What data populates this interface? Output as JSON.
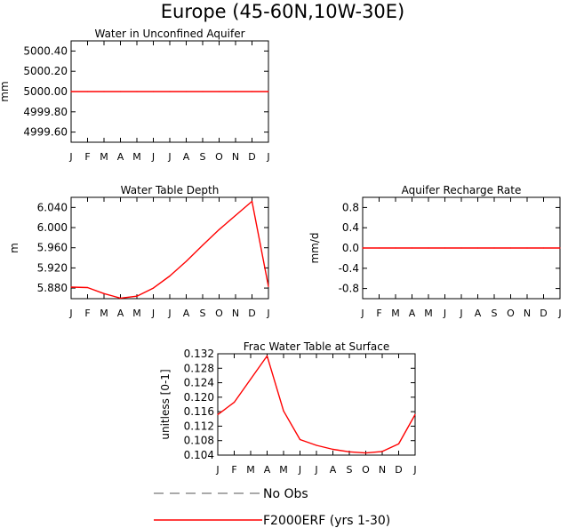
{
  "page": {
    "title": "Europe (45-60N,10W-30E)"
  },
  "colors": {
    "obs": "#777777",
    "model": "#ff0000",
    "axis": "#000000"
  },
  "legend": {
    "obs_label": "No Obs",
    "model_label": "F2000ERF (yrs 1-30)"
  },
  "months": [
    "J",
    "F",
    "M",
    "A",
    "M",
    "J",
    "J",
    "A",
    "S",
    "O",
    "N",
    "D",
    "J"
  ],
  "chart_data": [
    {
      "type": "line",
      "title": "Water in Unconfined Aquifer",
      "ylabel": "mm",
      "ylim": [
        4999.5,
        5000.5
      ],
      "yticks": [
        4999.6,
        4999.8,
        5000.0,
        5000.2,
        5000.4
      ],
      "ytick_labels": [
        "4999.60",
        "4999.80",
        "5000.00",
        "5000.20",
        "5000.40"
      ],
      "categories": [
        "J",
        "F",
        "M",
        "A",
        "M",
        "J",
        "J",
        "A",
        "S",
        "O",
        "N",
        "D",
        "J"
      ],
      "series": [
        {
          "name": "F2000ERF (yrs 1-30)",
          "values": [
            5000.0,
            5000.0,
            5000.0,
            5000.0,
            5000.0,
            5000.0,
            5000.0,
            5000.0,
            5000.0,
            5000.0,
            5000.0,
            5000.0,
            5000.0
          ]
        }
      ]
    },
    {
      "type": "line",
      "title": "Water Table Depth",
      "ylabel": "m",
      "ylim": [
        5.859,
        6.06
      ],
      "yticks": [
        5.88,
        5.92,
        5.96,
        6.0,
        6.04
      ],
      "ytick_labels": [
        "5.880",
        "5.920",
        "5.960",
        "6.000",
        "6.040"
      ],
      "categories": [
        "J",
        "F",
        "M",
        "A",
        "M",
        "J",
        "J",
        "A",
        "S",
        "O",
        "N",
        "D",
        "J"
      ],
      "series": [
        {
          "name": "F2000ERF (yrs 1-30)",
          "values": [
            5.882,
            5.881,
            5.869,
            5.86,
            5.864,
            5.88,
            5.904,
            5.933,
            5.965,
            5.996,
            6.024,
            6.052,
            5.883
          ]
        }
      ]
    },
    {
      "type": "line",
      "title": "Aquifer Recharge Rate",
      "ylabel": "mm/d",
      "ylim": [
        -1.0,
        1.0
      ],
      "yticks": [
        -0.8,
        -0.4,
        0.0,
        0.4,
        0.8
      ],
      "ytick_labels": [
        "-0.8",
        "-0.4",
        "0.0",
        "0.4",
        "0.8"
      ],
      "categories": [
        "J",
        "F",
        "M",
        "A",
        "M",
        "J",
        "J",
        "A",
        "S",
        "O",
        "N",
        "D",
        "J"
      ],
      "series": [
        {
          "name": "F2000ERF (yrs 1-30)",
          "values": [
            0,
            0,
            0,
            0,
            0,
            0,
            0,
            0,
            0,
            0,
            0,
            0,
            0
          ]
        }
      ]
    },
    {
      "type": "line",
      "title": "Frac Water Table at Surface",
      "ylabel": "unitless [0-1]",
      "ylim": [
        0.104,
        0.132
      ],
      "yticks": [
        0.104,
        0.108,
        0.112,
        0.116,
        0.12,
        0.124,
        0.128,
        0.132
      ],
      "ytick_labels": [
        "0.104",
        "0.108",
        "0.112",
        "0.116",
        "0.120",
        "0.124",
        "0.128",
        "0.132"
      ],
      "categories": [
        "J",
        "F",
        "M",
        "A",
        "M",
        "J",
        "J",
        "A",
        "S",
        "O",
        "N",
        "D",
        "J"
      ],
      "series": [
        {
          "name": "F2000ERF (yrs 1-30)",
          "values": [
            0.1152,
            0.1186,
            0.125,
            0.1314,
            0.1162,
            0.1083,
            0.1067,
            0.1056,
            0.1049,
            0.1046,
            0.105,
            0.1071,
            0.1152
          ]
        }
      ]
    }
  ]
}
